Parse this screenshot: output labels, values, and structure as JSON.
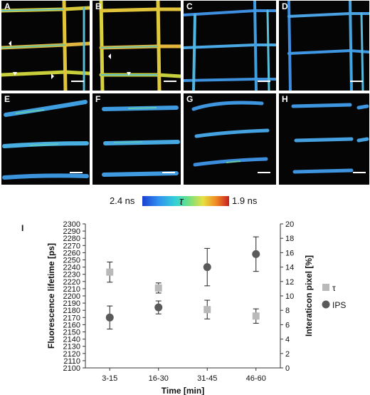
{
  "panels": [
    {
      "label": "A"
    },
    {
      "label": "B"
    },
    {
      "label": "C"
    },
    {
      "label": "D"
    },
    {
      "label": "E"
    },
    {
      "label": "F"
    },
    {
      "label": "G"
    },
    {
      "label": "H"
    }
  ],
  "colorbar": {
    "left_label": "2.4 ns",
    "symbol": "τ",
    "right_label": "1.9 ns"
  },
  "chart_panel_label": "I",
  "chart_data": {
    "type": "scatter",
    "categories": [
      "3-15",
      "16-30",
      "31-45",
      "46-60"
    ],
    "xlabel": "Time [min]",
    "ylabel": "Fluorescence lifetime [ps]",
    "y2label": "Interaticon pixel [%]",
    "ylim": [
      2100,
      2300
    ],
    "y2lim": [
      0,
      20
    ],
    "yticks": [
      "2100",
      "2110",
      "2120",
      "2130",
      "2140",
      "2150",
      "2160",
      "2170",
      "2180",
      "2190",
      "2200",
      "2210",
      "2220",
      "2230",
      "2240",
      "2250",
      "2260",
      "2270",
      "2280",
      "2290",
      "2300"
    ],
    "y2ticks": [
      "0",
      "2",
      "4",
      "6",
      "8",
      "10",
      "12",
      "14",
      "16",
      "18",
      "20"
    ],
    "series": [
      {
        "name": "τ",
        "axis": "left",
        "marker": "square",
        "color": "#b9b9b9",
        "values": [
          2233,
          2211,
          2181,
          2172
        ],
        "errors": [
          14,
          7,
          13,
          10
        ]
      },
      {
        "name": "IPS",
        "axis": "right",
        "marker": "circle",
        "color": "#5a5a5a",
        "values": [
          7.0,
          8.4,
          14.0,
          15.8
        ],
        "errors": [
          1.6,
          0.9,
          2.6,
          2.4
        ]
      }
    ],
    "legend": "right"
  }
}
